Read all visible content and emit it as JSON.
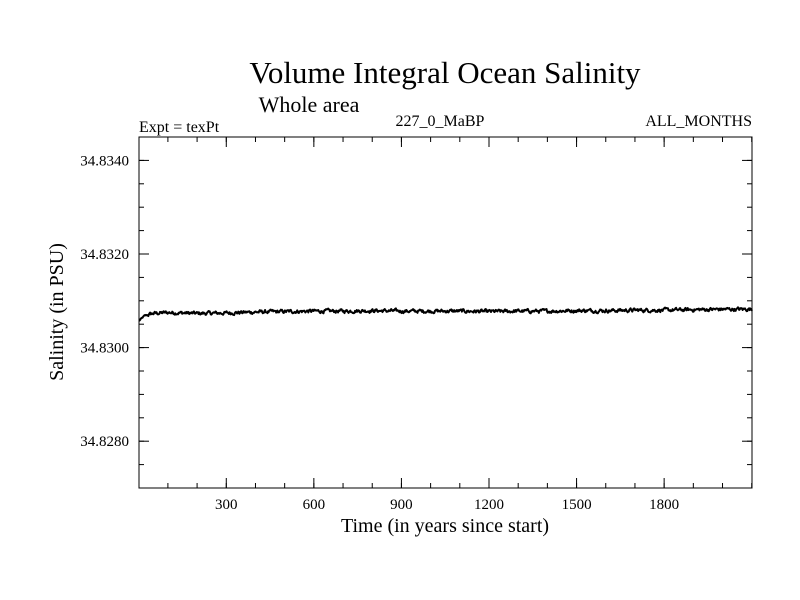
{
  "chart_data": {
    "type": "line",
    "title": "Volume Integral Ocean Salinity",
    "subtitle": "Whole area",
    "header_left": "Expt = texPt",
    "header_center": "227_0_MaBP",
    "header_right": "ALL_MONTHS",
    "xlabel": "Time (in years since start)",
    "ylabel": "Salinity (in PSU)",
    "xlim": [
      1,
      2101
    ],
    "ylim": [
      34.827,
      34.8345
    ],
    "x_major_ticks": [
      300,
      600,
      900,
      1200,
      1500,
      1800
    ],
    "x_tick_labels": [
      "300",
      "600",
      "900",
      "1200",
      "1500",
      "1800"
    ],
    "y_major_ticks": [
      34.828,
      34.83,
      34.832,
      34.834
    ],
    "y_tick_labels": [
      "34.8280",
      "34.8300",
      "34.8320",
      "34.8340"
    ],
    "grid": false,
    "series": [
      {
        "name": "Volume integral salinity",
        "color": "#000000",
        "x": [
          1,
          20,
          50,
          100,
          150,
          200,
          300,
          400,
          500,
          600,
          700,
          800,
          900,
          1000,
          1100,
          1200,
          1300,
          1400,
          1500,
          1600,
          1700,
          1800,
          1900,
          2000,
          2101
        ],
        "values": [
          34.83057,
          34.83068,
          34.83073,
          34.83075,
          34.83074,
          34.83073,
          34.83074,
          34.83076,
          34.83077,
          34.83078,
          34.83078,
          34.83079,
          34.83078,
          34.83078,
          34.83078,
          34.83077,
          34.83078,
          34.83078,
          34.83079,
          34.83079,
          34.8308,
          34.8308,
          34.83081,
          34.83082,
          34.83082
        ],
        "noise_amplitude": 4e-05
      }
    ]
  }
}
